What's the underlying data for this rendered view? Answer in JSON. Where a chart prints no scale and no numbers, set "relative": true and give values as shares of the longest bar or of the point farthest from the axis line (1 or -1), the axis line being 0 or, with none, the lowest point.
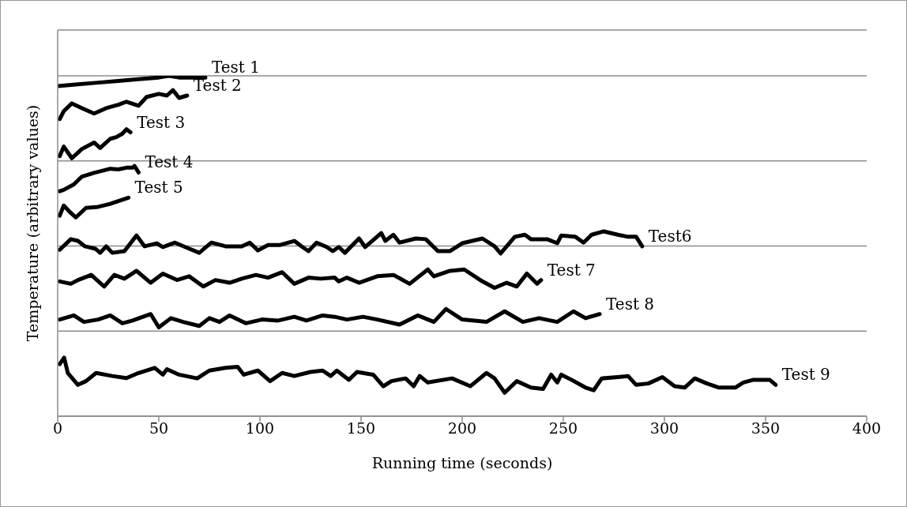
{
  "chart_data": {
    "type": "line",
    "xlabel": "Running time (seconds)",
    "ylabel": "Temperature (arbitrary values)",
    "relative": true,
    "xlim": [
      0,
      400
    ],
    "xticks": [
      0,
      50,
      100,
      150,
      200,
      250,
      300,
      350,
      400
    ],
    "grid": "y",
    "legend": false,
    "marker": "none",
    "line_style": "solid",
    "tick_labels": "x",
    "series": [
      {
        "name": "Test 1",
        "color": "#000000",
        "x": [
          0,
          10,
          20,
          30,
          40,
          50,
          55,
          60,
          73
        ],
        "values": [
          0.97,
          0.975,
          0.98,
          0.985,
          0.99,
          0.995,
          1.0,
          0.995,
          0.995
        ]
      },
      {
        "name": "Test 2",
        "color": "#000000",
        "x": [
          1,
          3,
          7,
          12,
          18,
          24,
          30,
          34,
          40,
          44,
          50,
          54,
          57,
          60,
          64
        ],
        "values": [
          0.873,
          0.896,
          0.919,
          0.905,
          0.889,
          0.905,
          0.915,
          0.924,
          0.912,
          0.938,
          0.947,
          0.942,
          0.958,
          0.935,
          0.942
        ]
      },
      {
        "name": "Test 3",
        "color": "#000000",
        "x": [
          1,
          3,
          7,
          12,
          18,
          21,
          26,
          29,
          32,
          34,
          36
        ],
        "values": [
          0.764,
          0.792,
          0.758,
          0.785,
          0.804,
          0.788,
          0.815,
          0.82,
          0.83,
          0.843,
          0.834
        ]
      },
      {
        "name": "Test 4",
        "color": "#000000",
        "x": [
          1,
          3,
          8,
          12,
          18,
          26,
          30,
          34,
          37,
          38,
          40
        ],
        "values": [
          0.661,
          0.665,
          0.681,
          0.704,
          0.715,
          0.727,
          0.725,
          0.73,
          0.73,
          0.735,
          0.716
        ]
      },
      {
        "name": "Test 5",
        "color": "#000000",
        "x": [
          1,
          3,
          6,
          9,
          14,
          20,
          26,
          30,
          35
        ],
        "values": [
          0.589,
          0.619,
          0.6,
          0.584,
          0.612,
          0.615,
          0.624,
          0.632,
          0.642
        ]
      },
      {
        "name": "Test6",
        "color": "#000000",
        "x": [
          1,
          6.5,
          10,
          13.5,
          18.6,
          21,
          24,
          27,
          33,
          39,
          43,
          49,
          52,
          58,
          63,
          70,
          76,
          83,
          91,
          95,
          99,
          104,
          110,
          117,
          121,
          124,
          128,
          133,
          136,
          139,
          142,
          149,
          152,
          160,
          162,
          166,
          169,
          177,
          182,
          188,
          194,
          200,
          210,
          216,
          219,
          226,
          231,
          234,
          242,
          247,
          249,
          256,
          260,
          264,
          270,
          277,
          282,
          286,
          289
        ],
        "values": [
          0.489,
          0.52,
          0.515,
          0.499,
          0.492,
          0.48,
          0.499,
          0.48,
          0.485,
          0.531,
          0.499,
          0.508,
          0.497,
          0.51,
          0.497,
          0.48,
          0.51,
          0.499,
          0.499,
          0.51,
          0.487,
          0.503,
          0.503,
          0.515,
          0.497,
          0.485,
          0.51,
          0.497,
          0.485,
          0.497,
          0.48,
          0.522,
          0.497,
          0.538,
          0.515,
          0.533,
          0.51,
          0.522,
          0.52,
          0.485,
          0.485,
          0.508,
          0.522,
          0.499,
          0.478,
          0.527,
          0.533,
          0.52,
          0.52,
          0.508,
          0.531,
          0.527,
          0.51,
          0.533,
          0.543,
          0.533,
          0.527,
          0.527,
          0.499
        ]
      },
      {
        "name": "Test 7",
        "color": "#000000",
        "x": [
          1,
          6.5,
          10,
          16.6,
          23,
          28,
          33,
          39,
          46,
          52,
          59,
          65,
          72,
          78,
          85,
          91,
          98,
          104,
          111,
          117,
          124,
          130,
          137,
          139,
          143,
          149,
          158,
          166,
          174,
          183,
          186,
          194,
          201,
          210,
          216,
          222,
          227,
          232,
          237,
          239
        ],
        "values": [
          0.396,
          0.389,
          0.4,
          0.415,
          0.381,
          0.415,
          0.404,
          0.427,
          0.392,
          0.419,
          0.4,
          0.411,
          0.381,
          0.4,
          0.392,
          0.404,
          0.415,
          0.407,
          0.423,
          0.389,
          0.407,
          0.404,
          0.407,
          0.396,
          0.407,
          0.392,
          0.411,
          0.415,
          0.389,
          0.431,
          0.411,
          0.427,
          0.431,
          0.396,
          0.377,
          0.392,
          0.381,
          0.419,
          0.389,
          0.4
        ]
      },
      {
        "name": "Test 8",
        "color": "#000000",
        "x": [
          1,
          8,
          13,
          20,
          26,
          32,
          37,
          46,
          50,
          56,
          62,
          70,
          75,
          80,
          85,
          93,
          101,
          109,
          117,
          123,
          131,
          137,
          143,
          151,
          158,
          169,
          178,
          186,
          192,
          200,
          212,
          221,
          230,
          238,
          247,
          255,
          261,
          268
        ],
        "values": [
          0.284,
          0.296,
          0.277,
          0.284,
          0.296,
          0.273,
          0.281,
          0.3,
          0.261,
          0.288,
          0.277,
          0.265,
          0.288,
          0.277,
          0.296,
          0.273,
          0.284,
          0.281,
          0.292,
          0.281,
          0.296,
          0.292,
          0.284,
          0.292,
          0.284,
          0.269,
          0.296,
          0.277,
          0.315,
          0.284,
          0.277,
          0.308,
          0.277,
          0.288,
          0.277,
          0.308,
          0.288,
          0.3
        ]
      },
      {
        "name": "Test 9",
        "color": "#000000",
        "x": [
          1,
          3.2,
          5,
          10,
          14,
          19,
          27,
          34,
          40,
          48,
          52,
          54,
          60,
          69,
          75,
          83,
          89,
          92,
          99,
          105,
          111,
          117,
          125,
          131,
          135,
          138,
          144,
          148,
          156,
          161,
          165,
          172,
          176,
          179,
          183,
          195,
          204,
          212,
          216,
          221,
          227,
          234,
          240,
          244,
          247,
          249,
          254,
          261,
          265,
          269,
          277,
          282,
          286,
          292,
          299,
          305,
          310,
          315,
          321,
          327,
          335,
          339,
          344,
          352,
          355
        ],
        "values": [
          0.153,
          0.172,
          0.127,
          0.092,
          0.103,
          0.127,
          0.118,
          0.112,
          0.127,
          0.142,
          0.122,
          0.138,
          0.122,
          0.111,
          0.134,
          0.142,
          0.145,
          0.122,
          0.134,
          0.103,
          0.127,
          0.118,
          0.13,
          0.134,
          0.118,
          0.134,
          0.107,
          0.13,
          0.122,
          0.088,
          0.103,
          0.111,
          0.088,
          0.118,
          0.099,
          0.111,
          0.088,
          0.127,
          0.111,
          0.069,
          0.103,
          0.084,
          0.08,
          0.122,
          0.099,
          0.122,
          0.107,
          0.084,
          0.076,
          0.111,
          0.115,
          0.118,
          0.092,
          0.096,
          0.115,
          0.088,
          0.084,
          0.111,
          0.096,
          0.084,
          0.084,
          0.099,
          0.107,
          0.107,
          0.092
        ]
      }
    ]
  }
}
